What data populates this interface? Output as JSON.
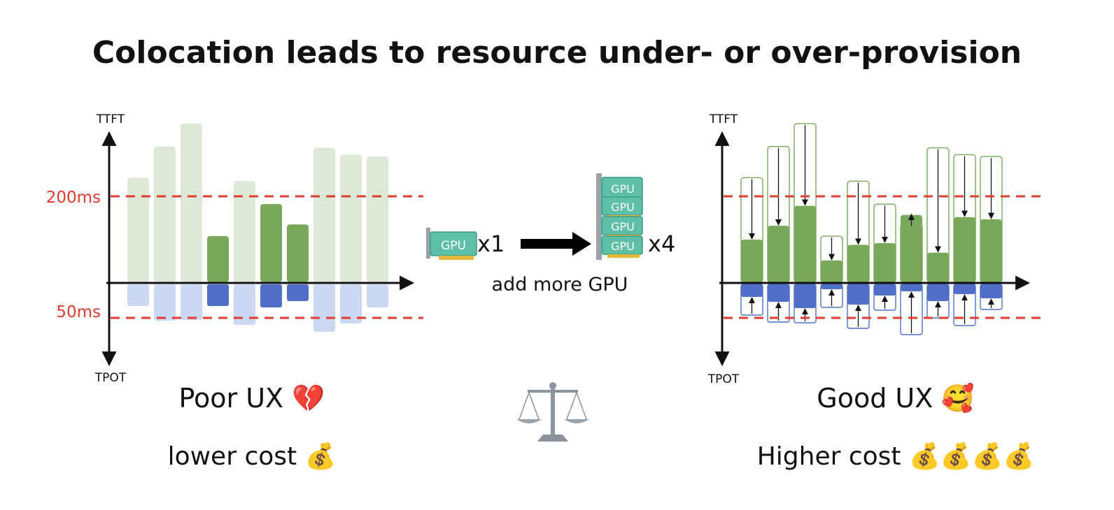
{
  "title": "Colocation leads to resource under- or over-provision",
  "middle": {
    "left_multiplier": "x1",
    "right_multiplier": "x4",
    "action_label": "add more GPU",
    "gpu_chip_text": "GPU"
  },
  "left_panel": {
    "ux_label": "Poor UX",
    "ux_emoji": "💔",
    "cost_label": "lower cost",
    "cost_emoji": "💰"
  },
  "right_panel": {
    "ux_label": "Good UX",
    "ux_emoji": "🥰",
    "cost_label": "Higher cost",
    "cost_emoji": "💰💰💰💰"
  },
  "colors": {
    "ttft_bar": "#79a85a",
    "ttft_bar_faded": "#dde8d6",
    "tpot_bar": "#4f70c6",
    "tpot_bar_faded": "#ccd8f3",
    "slo_line": "#e23b30",
    "slo_label": "#e23b30",
    "box_green": "#79a85a",
    "box_blue": "#4f70c6"
  },
  "chart_data": [
    {
      "type": "bar",
      "panel": "left",
      "upper_axis_label": "TTFT",
      "lower_axis_label": "TPOT",
      "thresholds": [
        {
          "axis": "TTFT",
          "label": "200ms",
          "value": 200
        },
        {
          "axis": "TPOT",
          "label": "50ms",
          "value": 50
        }
      ],
      "ttft_values": [
        243,
        315,
        368,
        108,
        235,
        182,
        135,
        312,
        296,
        292
      ],
      "tpot_values": [
        33,
        54,
        53,
        33,
        60,
        35,
        26,
        70,
        58,
        35
      ],
      "highlighted": [
        false,
        false,
        false,
        true,
        false,
        true,
        true,
        false,
        false,
        false
      ]
    },
    {
      "type": "bar",
      "panel": "right",
      "upper_axis_label": "TTFT",
      "lower_axis_label": "TPOT",
      "thresholds": [
        {
          "axis": "TTFT",
          "label": "",
          "value": 200
        },
        {
          "axis": "TPOT",
          "label": "",
          "value": 50
        }
      ],
      "ttft_before": [
        243,
        315,
        368,
        108,
        235,
        182,
        135,
        312,
        296,
        292
      ],
      "ttft_after": [
        100,
        132,
        178,
        52,
        88,
        92,
        157,
        70,
        152,
        147
      ],
      "tpot_before": [
        46,
        56,
        57,
        35,
        65,
        39,
        74,
        50,
        61,
        38
      ],
      "tpot_after": [
        20,
        27,
        36,
        9,
        31,
        18,
        12,
        26,
        16,
        22
      ]
    }
  ]
}
